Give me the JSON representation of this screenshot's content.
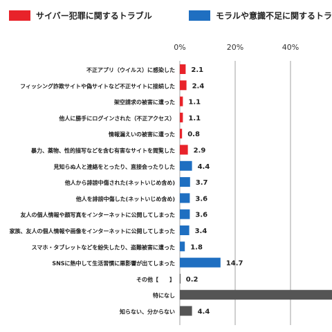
{
  "chart_data": {
    "type": "bar",
    "orientation": "horizontal",
    "legend": [
      {
        "name": "サイバー犯罪に関するトラブル",
        "color": "#e8232a"
      },
      {
        "name": "モラルや意識不足に関するトラブル",
        "color": "#1f6fc1"
      }
    ],
    "other_color": "#555555",
    "xlim": [
      0,
      60
    ],
    "xticks": [
      "0%",
      "20%",
      "40%"
    ],
    "categories": [
      "不正アプリ（ウイルス）に感染した",
      "フィッシング詐欺サイトや偽サイトなど不正サイトに接続した",
      "架空請求の被害に遭った",
      "他人に勝手にログインされた（不正アクセス）",
      "情報漏えいの被害に遭った",
      "暴力、薬物、性的描写などを含む有害なサイトを閲覧した",
      "見知らぬ人と連絡をとったり、直接会ったりした",
      "他人から誹謗中傷された(ネットいじめ含め)",
      "他人を誹謗中傷した(ネットいじめ含め)",
      "友人の個人情報や顔写真をインターネットに公開してしまった",
      "家族、友人の個人情報や画像をインターネットに公開してしまった",
      "スマホ・タブレットなどを紛失したり、盗難被害に遭った",
      "SNSに熱中して生活習慣に悪影響が出てしまった",
      "その他【　　】",
      "特になし",
      "知らない、分からない"
    ],
    "values": [
      2.1,
      2.4,
      1.1,
      1.1,
      0.8,
      2.9,
      4.4,
      3.7,
      3.6,
      3.6,
      3.4,
      1.8,
      14.7,
      0.2,
      null,
      4.4
    ],
    "value_labels": [
      "2.1",
      "2.4",
      "1.1",
      "1.1",
      "0.8",
      "2.9",
      "4.4",
      "3.7",
      "3.6",
      "3.6",
      "3.4",
      "1.8",
      "14.7",
      "0.2",
      "",
      "4.4"
    ],
    "groups": [
      "cyber",
      "cyber",
      "cyber",
      "cyber",
      "cyber",
      "cyber",
      "moral",
      "moral",
      "moral",
      "moral",
      "moral",
      "moral",
      "moral",
      "other",
      "other",
      "other"
    ],
    "grid": true
  }
}
